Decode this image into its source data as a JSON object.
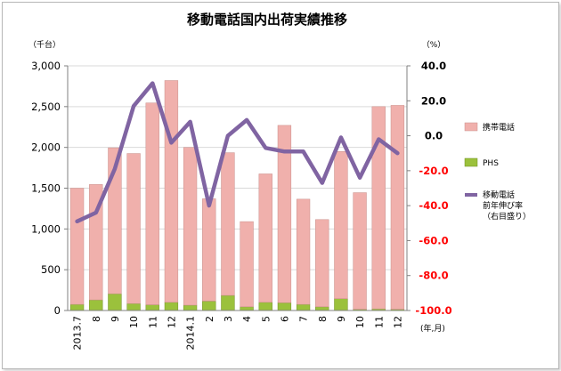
{
  "chart_data": {
    "type": "bar",
    "title": "移動電話国内出荷実績推移",
    "left_unit": "（千台）",
    "right_unit": "（%）",
    "x_unit": "(年,月)",
    "categories": [
      "2013.7",
      "8",
      "9",
      "10",
      "11",
      "12",
      "2014.1",
      "2",
      "3",
      "4",
      "5",
      "6",
      "7",
      "8",
      "9",
      "10",
      "11",
      "12"
    ],
    "ylim_left": [
      0,
      3000
    ],
    "left_ticks": [
      "0",
      "500",
      "1,000",
      "1,500",
      "2,000",
      "2,500",
      "3,000"
    ],
    "ylim_right": [
      -100,
      40
    ],
    "right_ticks": [
      "-100.0",
      "-80.0",
      "-60.0",
      "-40.0",
      "-20.0",
      "0.0",
      "20.0",
      "40.0"
    ],
    "grid": true,
    "legend_position": "right",
    "series": [
      {
        "name": "携帯電話",
        "kind": "bar-stacked",
        "axis": "left",
        "color": "#f0b0ac",
        "values": [
          1425,
          1415,
          1790,
          1840,
          2475,
          2720,
          1935,
          1255,
          1750,
          1045,
          1575,
          2175,
          1290,
          1070,
          1805,
          1430,
          2480,
          2500
        ]
      },
      {
        "name": "PHS",
        "kind": "bar-stacked",
        "axis": "left",
        "color": "#9bc13c",
        "values": [
          75,
          130,
          205,
          85,
          70,
          100,
          65,
          115,
          185,
          45,
          100,
          95,
          75,
          45,
          145,
          15,
          20,
          15
        ]
      },
      {
        "name": "移動電話\n前年伸び率\n（右目盛り）",
        "kind": "line",
        "axis": "right",
        "color": "#8064a2",
        "values": [
          -49,
          -44,
          -19,
          17,
          30,
          -4,
          8,
          -40,
          0,
          9,
          -7,
          -9,
          -9,
          -27,
          -1,
          -24,
          -2,
          -10
        ]
      }
    ]
  }
}
